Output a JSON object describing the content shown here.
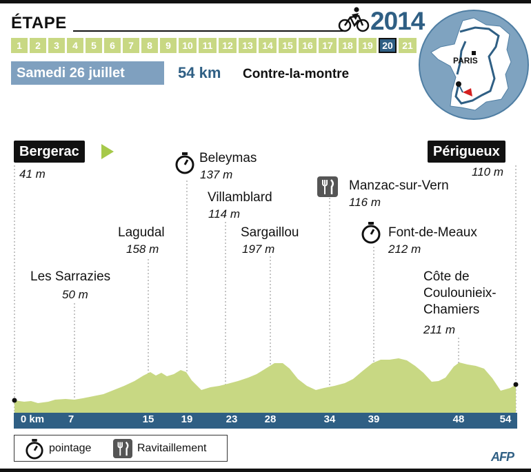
{
  "header": {
    "etape": "ÉTAPE",
    "year": "2014",
    "stages": [
      "1",
      "2",
      "3",
      "4",
      "5",
      "6",
      "7",
      "8",
      "9",
      "10",
      "11",
      "12",
      "13",
      "14",
      "15",
      "16",
      "17",
      "18",
      "19",
      "20",
      "21"
    ],
    "current_stage": "20",
    "date": "Samedi 26 juillet",
    "distance": "54 km",
    "stage_type": "Contre-la-montre"
  },
  "map": {
    "city": "PARIS"
  },
  "start": {
    "name": "Bergerac",
    "altitude": "41 m"
  },
  "finish": {
    "name": "Périgueux",
    "altitude": "110 m"
  },
  "points": [
    {
      "name": "Les Sarrazies",
      "altitude": "50 m",
      "km": 7,
      "icon": ""
    },
    {
      "name": "Lagudal",
      "altitude": "158 m",
      "km": 15,
      "icon": ""
    },
    {
      "name": "Beleymas",
      "altitude": "137 m",
      "km": 19,
      "icon": "stopwatch-icon"
    },
    {
      "name": "Villamblard",
      "altitude": "114 m",
      "km": 23,
      "icon": ""
    },
    {
      "name": "Sargaillou",
      "altitude": "197 m",
      "km": 28,
      "icon": ""
    },
    {
      "name": "Manzac-sur-Vern",
      "altitude": "116 m",
      "km": 34,
      "icon": "fork-knife-icon"
    },
    {
      "name": "Font-de-Meaux",
      "altitude": "212 m",
      "km": 39,
      "icon": "stopwatch-icon"
    },
    {
      "name": "Côte de",
      "name2": "Coulounieix-",
      "name3": "Chamiers",
      "altitude": "211 m",
      "km": 48,
      "icon": ""
    }
  ],
  "axis": {
    "labels": [
      "0 km",
      "7",
      "15",
      "19",
      "23",
      "28",
      "34",
      "39",
      "48",
      "54"
    ],
    "km_values": [
      0,
      7,
      15,
      19,
      23,
      28,
      34,
      39,
      48,
      54
    ]
  },
  "legend": {
    "pointage": "pointage",
    "ravitaillement": "Ravitaillement"
  },
  "credit": "AFP",
  "colors": {
    "profile": "#c8d883",
    "blue": "#2f5f84",
    "light_blue": "#7fa0bf"
  }
}
